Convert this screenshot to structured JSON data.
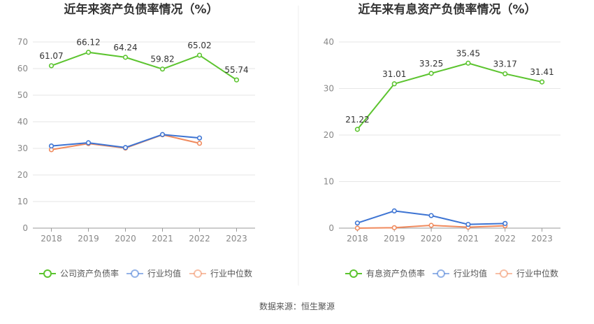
{
  "source_label": "数据来源：恒生聚源",
  "chart_data": [
    {
      "type": "line",
      "title": "近年来资产负债率情况（%）",
      "xlabel": "",
      "ylabel": "",
      "categories": [
        "2018",
        "2019",
        "2020",
        "2021",
        "2022",
        "2023"
      ],
      "ylim": [
        0,
        70
      ],
      "yticks": [
        0,
        10,
        20,
        30,
        40,
        50,
        60,
        70
      ],
      "grid": true,
      "legend_position": "bottom",
      "series": [
        {
          "name": "公司资产负债率",
          "color": "#5cc42f",
          "show_labels": true,
          "values": [
            61.07,
            66.12,
            64.24,
            59.82,
            65.02,
            55.74
          ],
          "labels": [
            "61.07",
            "66.12",
            "64.24",
            "59.82",
            "65.02",
            "55.74"
          ]
        },
        {
          "name": "行业均值",
          "color": "#3d74d3",
          "show_labels": false,
          "values": [
            30.9,
            32.1,
            30.3,
            35.2,
            33.9,
            null
          ]
        },
        {
          "name": "行业中位数",
          "color": "#f08a5d",
          "show_labels": false,
          "values": [
            29.5,
            31.8,
            30.1,
            35.1,
            31.9,
            null
          ]
        }
      ]
    },
    {
      "type": "line",
      "title": "近年来有息资产负债率情况（%）",
      "xlabel": "",
      "ylabel": "",
      "categories": [
        "2018",
        "2019",
        "2020",
        "2021",
        "2022",
        "2023"
      ],
      "ylim": [
        0,
        40
      ],
      "yticks": [
        0,
        10,
        20,
        30,
        40
      ],
      "grid": true,
      "legend_position": "bottom",
      "series": [
        {
          "name": "有息资产负债率",
          "color": "#5cc42f",
          "show_labels": true,
          "values": [
            21.22,
            31.01,
            33.25,
            35.45,
            33.17,
            31.41
          ],
          "labels": [
            "21.22",
            "31.01",
            "33.25",
            "35.45",
            "33.17",
            "31.41"
          ]
        },
        {
          "name": "行业均值",
          "color": "#3d74d3",
          "show_labels": false,
          "values": [
            1.1,
            3.7,
            2.7,
            0.8,
            1.0,
            null
          ]
        },
        {
          "name": "行业中位数",
          "color": "#f08a5d",
          "show_labels": false,
          "values": [
            0.0,
            0.1,
            0.6,
            0.2,
            0.5,
            null
          ]
        }
      ]
    }
  ]
}
